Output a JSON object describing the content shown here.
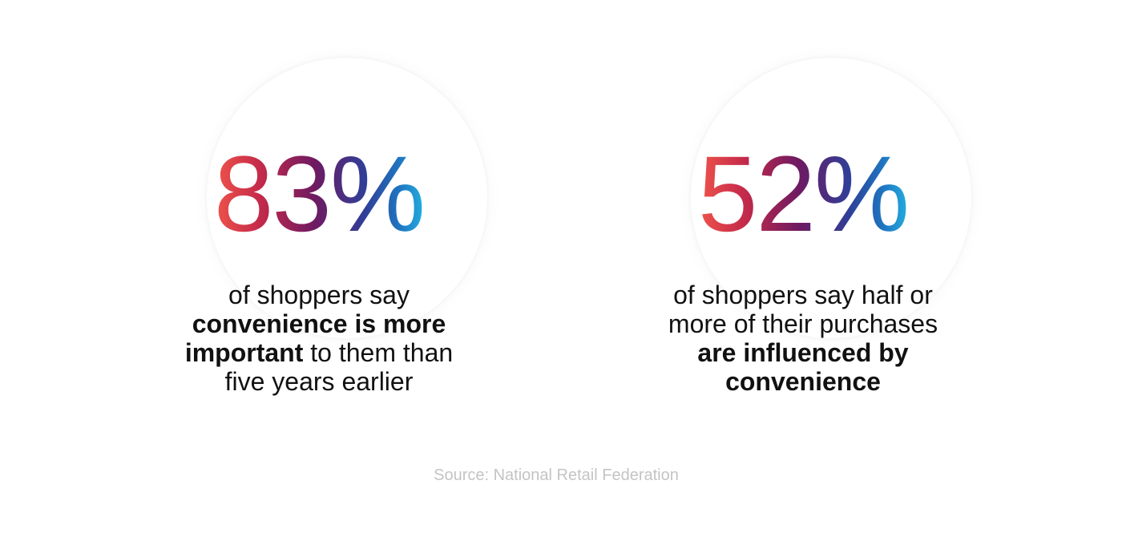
{
  "stats": [
    {
      "value": "83%",
      "caption": {
        "line1_plain": "of shoppers say",
        "line2_bold": "convenience is more",
        "line3_bold": "important",
        "line3_plain": " to them than",
        "line4_plain": "five years earlier"
      }
    },
    {
      "value": "52%",
      "caption": {
        "line1_plain": "of shoppers say half or",
        "line2_plain": "more of their purchases",
        "line3_bold": "are influenced by",
        "line4_bold": "convenience"
      }
    }
  ],
  "source": "Source: National Retail Federation",
  "colors": {
    "gradient_start": "#f0544a",
    "gradient_mid": "#6e1a62",
    "gradient_end": "#23aee0",
    "source_text": "#c4c4c4"
  }
}
